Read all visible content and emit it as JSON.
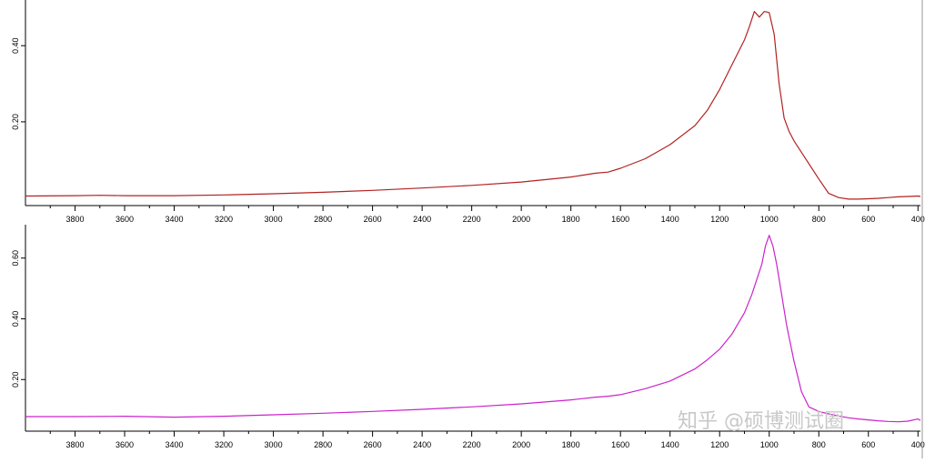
{
  "chart_data": [
    {
      "type": "line",
      "color": "#b22222",
      "xlim": [
        4000,
        390
      ],
      "ylim": [
        -0.02,
        0.52
      ],
      "x_ticks": [
        3800,
        3600,
        3400,
        3200,
        3000,
        2800,
        2600,
        2400,
        2200,
        2000,
        1800,
        1600,
        1400,
        1200,
        1000,
        800,
        600,
        400
      ],
      "y_ticks": [
        0.2,
        0.4
      ],
      "y_tick_labels": [
        "0.20",
        "0.40"
      ],
      "series": [
        {
          "x": [
            4000,
            3800,
            3700,
            3600,
            3400,
            3200,
            3000,
            2800,
            2600,
            2400,
            2200,
            2000,
            1800,
            1700,
            1650,
            1600,
            1500,
            1400,
            1300,
            1250,
            1200,
            1150,
            1100,
            1080,
            1060,
            1040,
            1020,
            1000,
            980,
            960,
            940,
            920,
            900,
            880,
            850,
            800,
            760,
            720,
            680,
            640,
            600,
            560,
            520,
            480,
            440,
            400,
            390
          ],
          "y": [
            0.005,
            0.006,
            0.007,
            0.006,
            0.006,
            0.008,
            0.011,
            0.015,
            0.02,
            0.026,
            0.033,
            0.042,
            0.055,
            0.065,
            0.068,
            0.078,
            0.103,
            0.14,
            0.19,
            0.23,
            0.285,
            0.35,
            0.415,
            0.45,
            0.49,
            0.475,
            0.49,
            0.487,
            0.43,
            0.3,
            0.21,
            0.175,
            0.15,
            0.13,
            0.1,
            0.05,
            0.012,
            0.001,
            -0.003,
            -0.003,
            -0.002,
            -0.001,
            0.001,
            0.003,
            0.004,
            0.005,
            0.004
          ]
        }
      ]
    },
    {
      "type": "line",
      "color": "#cc22cc",
      "xlim": [
        4000,
        390
      ],
      "ylim": [
        0.03,
        0.71
      ],
      "x_ticks": [
        3800,
        3600,
        3400,
        3200,
        3000,
        2800,
        2600,
        2400,
        2200,
        2000,
        1800,
        1600,
        1400,
        1200,
        1000,
        800,
        600,
        400
      ],
      "y_ticks": [
        0.2,
        0.4,
        0.6
      ],
      "y_tick_labels": [
        "0.20",
        "0.40",
        "0.60"
      ],
      "series": [
        {
          "x": [
            4000,
            3800,
            3600,
            3400,
            3200,
            3000,
            2800,
            2600,
            2400,
            2200,
            2000,
            1800,
            1700,
            1650,
            1600,
            1500,
            1400,
            1300,
            1250,
            1200,
            1150,
            1100,
            1070,
            1050,
            1030,
            1015,
            1000,
            985,
            970,
            950,
            930,
            900,
            870,
            840,
            800,
            760,
            720,
            680,
            640,
            600,
            560,
            520,
            480,
            440,
            400,
            390
          ],
          "y": [
            0.078,
            0.078,
            0.079,
            0.076,
            0.079,
            0.084,
            0.089,
            0.095,
            0.102,
            0.11,
            0.12,
            0.133,
            0.142,
            0.145,
            0.15,
            0.17,
            0.195,
            0.235,
            0.265,
            0.3,
            0.35,
            0.42,
            0.48,
            0.53,
            0.58,
            0.64,
            0.675,
            0.64,
            0.58,
            0.48,
            0.38,
            0.26,
            0.16,
            0.11,
            0.095,
            0.087,
            0.08,
            0.074,
            0.07,
            0.067,
            0.064,
            0.062,
            0.061,
            0.063,
            0.07,
            0.065
          ]
        }
      ]
    }
  ],
  "watermark_text": "知乎 @硕博测试圈"
}
